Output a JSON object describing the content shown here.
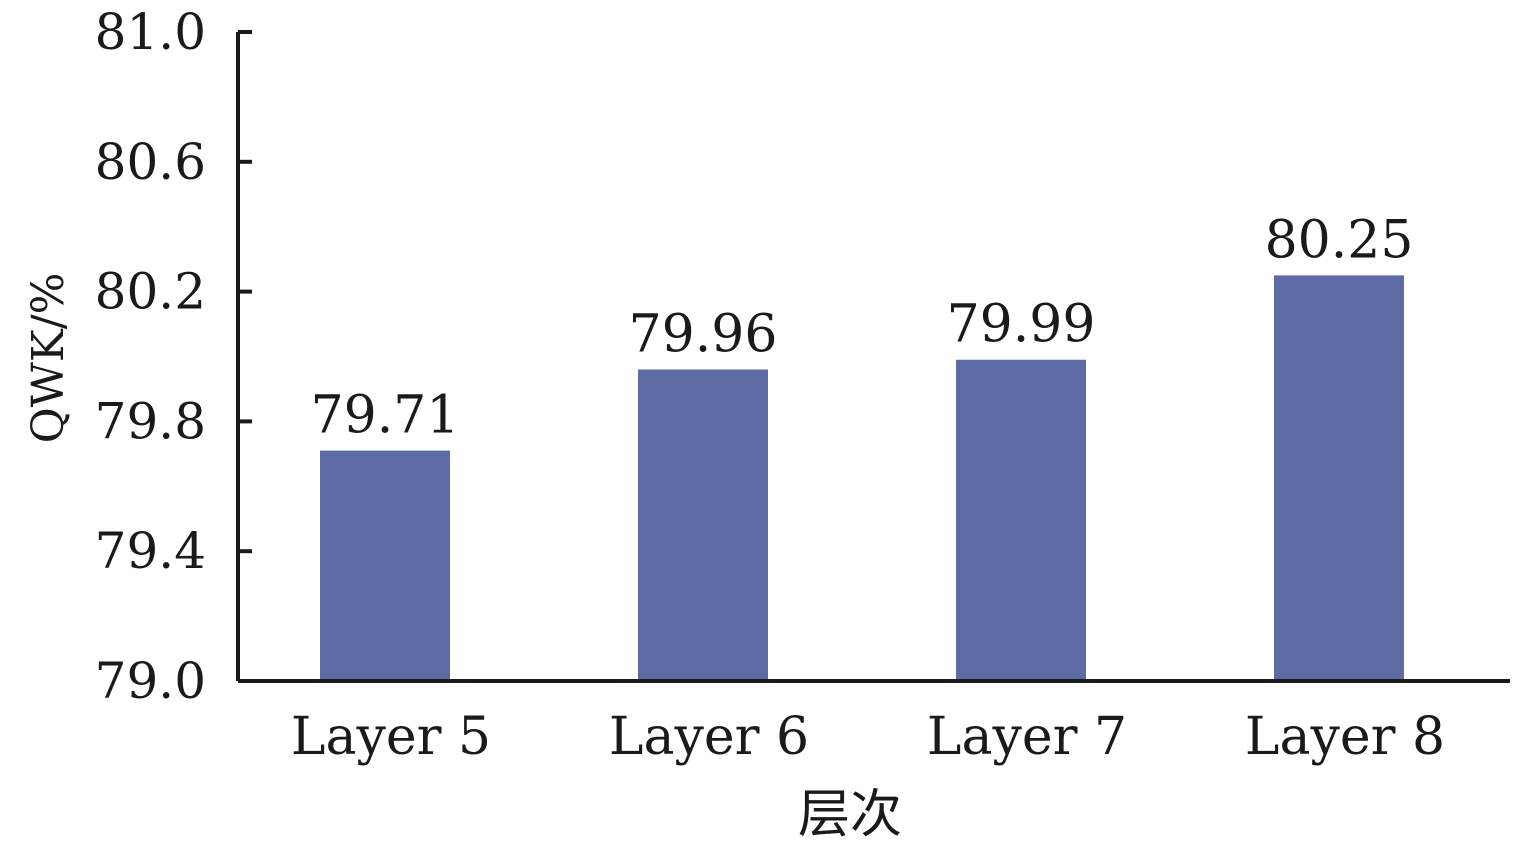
{
  "chart_data": {
    "type": "bar",
    "categories": [
      "Layer 5",
      "Layer 6",
      "Layer 7",
      "Layer 8"
    ],
    "values": [
      79.71,
      79.96,
      79.99,
      80.25
    ],
    "data_labels": [
      "79.71",
      "79.96",
      "79.99",
      "80.25"
    ],
    "xlabel": "层次",
    "ylabel": "QWK/%",
    "ylim": [
      79.0,
      81.0
    ],
    "yticks": [
      79.0,
      79.4,
      79.8,
      80.2,
      80.6,
      81.0
    ],
    "ytick_labels": [
      "79.0",
      "79.4",
      "79.8",
      "80.2",
      "80.6",
      "81.0"
    ],
    "grid": false,
    "legend": "none",
    "bar_color": "#5e6ba5"
  }
}
